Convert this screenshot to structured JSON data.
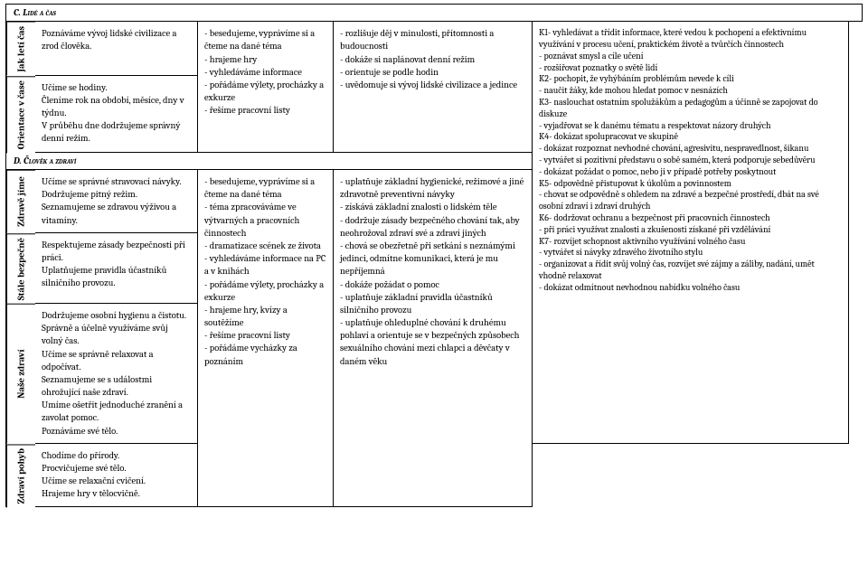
{
  "sectionC": {
    "title": "C. Lidé a čas",
    "rows": [
      {
        "label": "Jak letí čas",
        "c1": "Poznáváme vývoj lidské civilizace a zrod člověka.",
        "c2": "- besedujeme, vyprávíme si a čteme na dané téma\n- hrajeme hry\n- vyhledáváme informace\n- pořádáme výlety, procházky a exkurze\n- řešíme pracovní listy",
        "c3": "- rozlišuje děj v minulosti, přítomnosti a budoucnosti\n- dokáže si naplánovat denní režim\n- orientuje se podle hodin\n- uvědomuje si vývoj lidské civilizace a jedince",
        "c4": "K1- vyhledávat a třídit informace, které vedou k pochopení a efektivnímu využívání v procesu učení, praktickém životě a tvůrčích činnostech\n- poznávat smysl a cíle učení\n- rozšiřovat poznatky o světě lidí\nK2- pochopit, že vyhýbáním problémům nevede k cíli\n- naučit žáky, kde mohou hledat pomoc v nesnázích\nK3- naslouchat ostatním spolužákům a pedagogům a účinně se zapojovat do diskuze\n- vyjadřovat se k danému tématu a respektovat názory druhých\nK4- dokázat spolupracovat ve skupině\n- dokázat rozpoznat nevhodné chování, agresivitu, nespravedlnost, šikanu\n- vytvářet si pozitivní představu o sobě samém, která podporuje sebedůvěru\n- dokázat požádat o pomoc, nebo ji v případě potřeby poskytnout\nK5- odpovědně přistupovat k úkolům a povinnostem\n- chovat se odpovědně s ohledem na zdravé a bezpečné prostředí, dbát na své osobní zdraví i zdraví druhých\nK6- dodržovat ochranu a bezpečnost při pracovních činnostech\n- při práci využívat znalosti a zkušenosti získané při vzdělávání\nK7- rozvíjet schopnost aktivního využívání volného času\n- vytvářet si návyky zdravého životního stylu\n- organizovat a řídit svůj volný čas, rozvíjet své zájmy a záliby, nadání, umět vhodně relaxovat\n- dokázat odmítnout nevhodnou nabídku volného času"
      },
      {
        "label": "Orientace v čase",
        "c1": "Učíme se hodiny.\nČleníme rok na období, měsíce, dny v týdnu.\nV průběhu dne dodržujeme správný denní režim."
      }
    ]
  },
  "sectionD": {
    "title": "D. Člověk a zdraví",
    "rows": [
      {
        "label": "Zdravě jíme",
        "c1": "Učíme se správné stravovací návyky.\nDodržujeme pitný režim.\nSeznamujeme se zdravou výživou a vitamíny.",
        "c2": "- besedujeme, vyprávíme si a čteme na dané téma\n- téma zpracováváme ve výtvarných a pracovních činnostech\n- dramatizace scének ze života\n- vyhledáváme informace na PC a v knihách\n- pořádáme výlety, procházky a exkurze\n- hrajeme hry, kvízy a soutěžíme\n- řešíme pracovní listy\n- pořádáme vycházky za poznáním",
        "c3": "- uplatňuje základní hygienické, režimové a jiné zdravotně preventivní návyky\n- získává základní znalosti o lidském těle\n- dodržuje zásady bezpečného chování tak, aby neohrožoval zdraví své a zdraví jiných\n- chová se obezřetně při setkání s neznámými jedinci, odmítne komunikaci, která je mu nepříjemná\n- dokáže požádat o pomoc\n- uplatňuje základní pravidla účastníků silničního provozu\n- uplatňuje ohleduplné chování k druhému pohlaví a orientuje se v bezpečných způsobech sexuálního chování mezi chlapci a děvčaty v daném věku"
      },
      {
        "label": "Stále bezpečně",
        "c1": "Respektujeme zásady bezpečnosti při práci.\nUplatňujeme pravidla účastníků silničního provozu."
      },
      {
        "label": "Naše zdraví",
        "c1": "Dodržujeme osobní hygienu a čistotu.\nSprávně a účelně využíváme svůj volný čas.\nUčíme se správně relaxovat a odpočívat.\nSeznamujeme se s událostmi ohrožující naše zdraví.\nUmíme ošetřit jednoduché zranění a zavolat pomoc.\nPoznáváme své tělo."
      },
      {
        "label": "Zdraví pohyb",
        "c1": "Chodíme do přírody.\nProcvičujeme své tělo.\nUčíme se relaxační cvičení.\nHrajeme hry v tělocvičně."
      }
    ]
  }
}
